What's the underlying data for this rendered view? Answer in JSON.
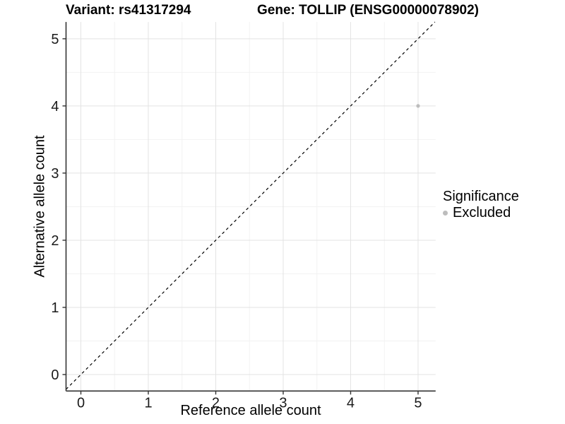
{
  "chart_data": {
    "type": "scatter",
    "title_left": "Variant: rs41317294",
    "title_right": "Gene: TOLLIP (ENSG00000078902)",
    "xlabel": "Reference allele count",
    "ylabel": "Alternative allele count",
    "xlim": [
      -0.22,
      5.26
    ],
    "ylim": [
      -0.245,
      5.25
    ],
    "xticks": [
      0,
      1,
      2,
      3,
      4,
      5
    ],
    "yticks": [
      0,
      1,
      2,
      3,
      4,
      5
    ],
    "grid": "major+minor",
    "series": [
      {
        "name": "Excluded",
        "color": "#bdbdbd",
        "points": [
          {
            "x": 5,
            "y": 4
          }
        ]
      }
    ],
    "reference_line": {
      "type": "identity y=x",
      "style": "dashed",
      "color": "#000000"
    },
    "legend": {
      "title": "Significance",
      "position": "right",
      "items": [
        {
          "label": "Excluded",
          "color": "#bdbdbd"
        }
      ]
    },
    "colors": {
      "point": "#bdbdbd",
      "grid_major": "#e3e3e3",
      "grid_minor": "#f2f2f2",
      "axis": "#333333",
      "tick_text": "#1a1a1a",
      "diagonal": "#000000"
    }
  }
}
